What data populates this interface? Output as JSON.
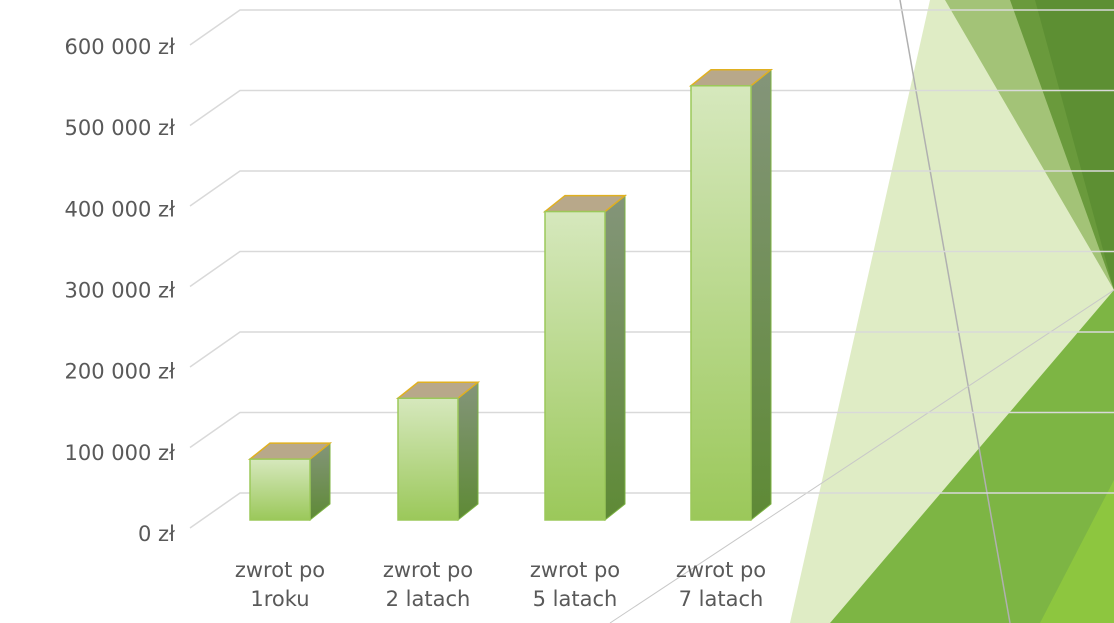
{
  "chart_data": {
    "type": "bar3d",
    "categories": [
      "zwrot po\n1roku",
      "zwrot po\n2 latach",
      "zwrot po\n5 latach",
      "zwrot po\n7 latach"
    ],
    "values": [
      75000,
      150000,
      380000,
      535000
    ],
    "ylim": [
      0,
      600000
    ],
    "yticks": [
      {
        "value": 0,
        "label": "0 zł"
      },
      {
        "value": 100000,
        "label": "100 000 zł"
      },
      {
        "value": 200000,
        "label": "200 000 zł"
      },
      {
        "value": 300000,
        "label": "300 000 zł"
      },
      {
        "value": 400000,
        "label": "400 000 zł"
      },
      {
        "value": 500000,
        "label": "500 000 zł"
      },
      {
        "value": 600000,
        "label": "600 000 zł"
      }
    ],
    "grid": true,
    "color": "#9bc85a"
  }
}
